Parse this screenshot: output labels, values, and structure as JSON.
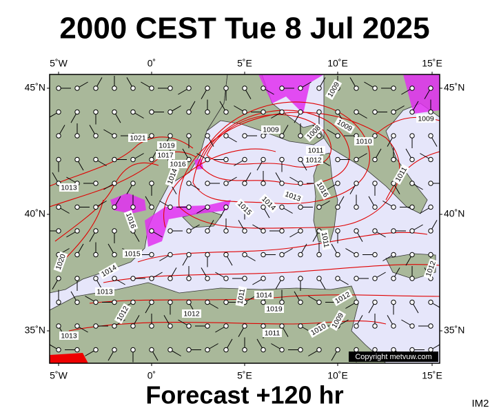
{
  "header": {
    "title": "2000 CEST Tue 8 Jul 2025"
  },
  "axes": {
    "lon_labels": [
      "5˚W",
      "0˚",
      "5˚E",
      "10˚E",
      "15˚E"
    ],
    "lat_labels": [
      "45˚N",
      "40˚N",
      "35˚N"
    ]
  },
  "isobars": {
    "labels": [
      "1009",
      "1009",
      "1008",
      "1009",
      "1010",
      "1011",
      "1012",
      "1009",
      "1021",
      "1019",
      "1017",
      "1016",
      "1014",
      "1013",
      "1016",
      "1015",
      "1014",
      "1013",
      "1020",
      "1015",
      "1014",
      "1013",
      "1016",
      "1011",
      "1012",
      "1011",
      "1014",
      "1019",
      "1011",
      "1012",
      "1012",
      "1009",
      "1010",
      "1011",
      "1012",
      "1013"
    ]
  },
  "map": {
    "copyright": "Copyright metvuw.com"
  },
  "footer": {
    "forecast": "Forecast +120 hr",
    "image_id": "IM2"
  }
}
